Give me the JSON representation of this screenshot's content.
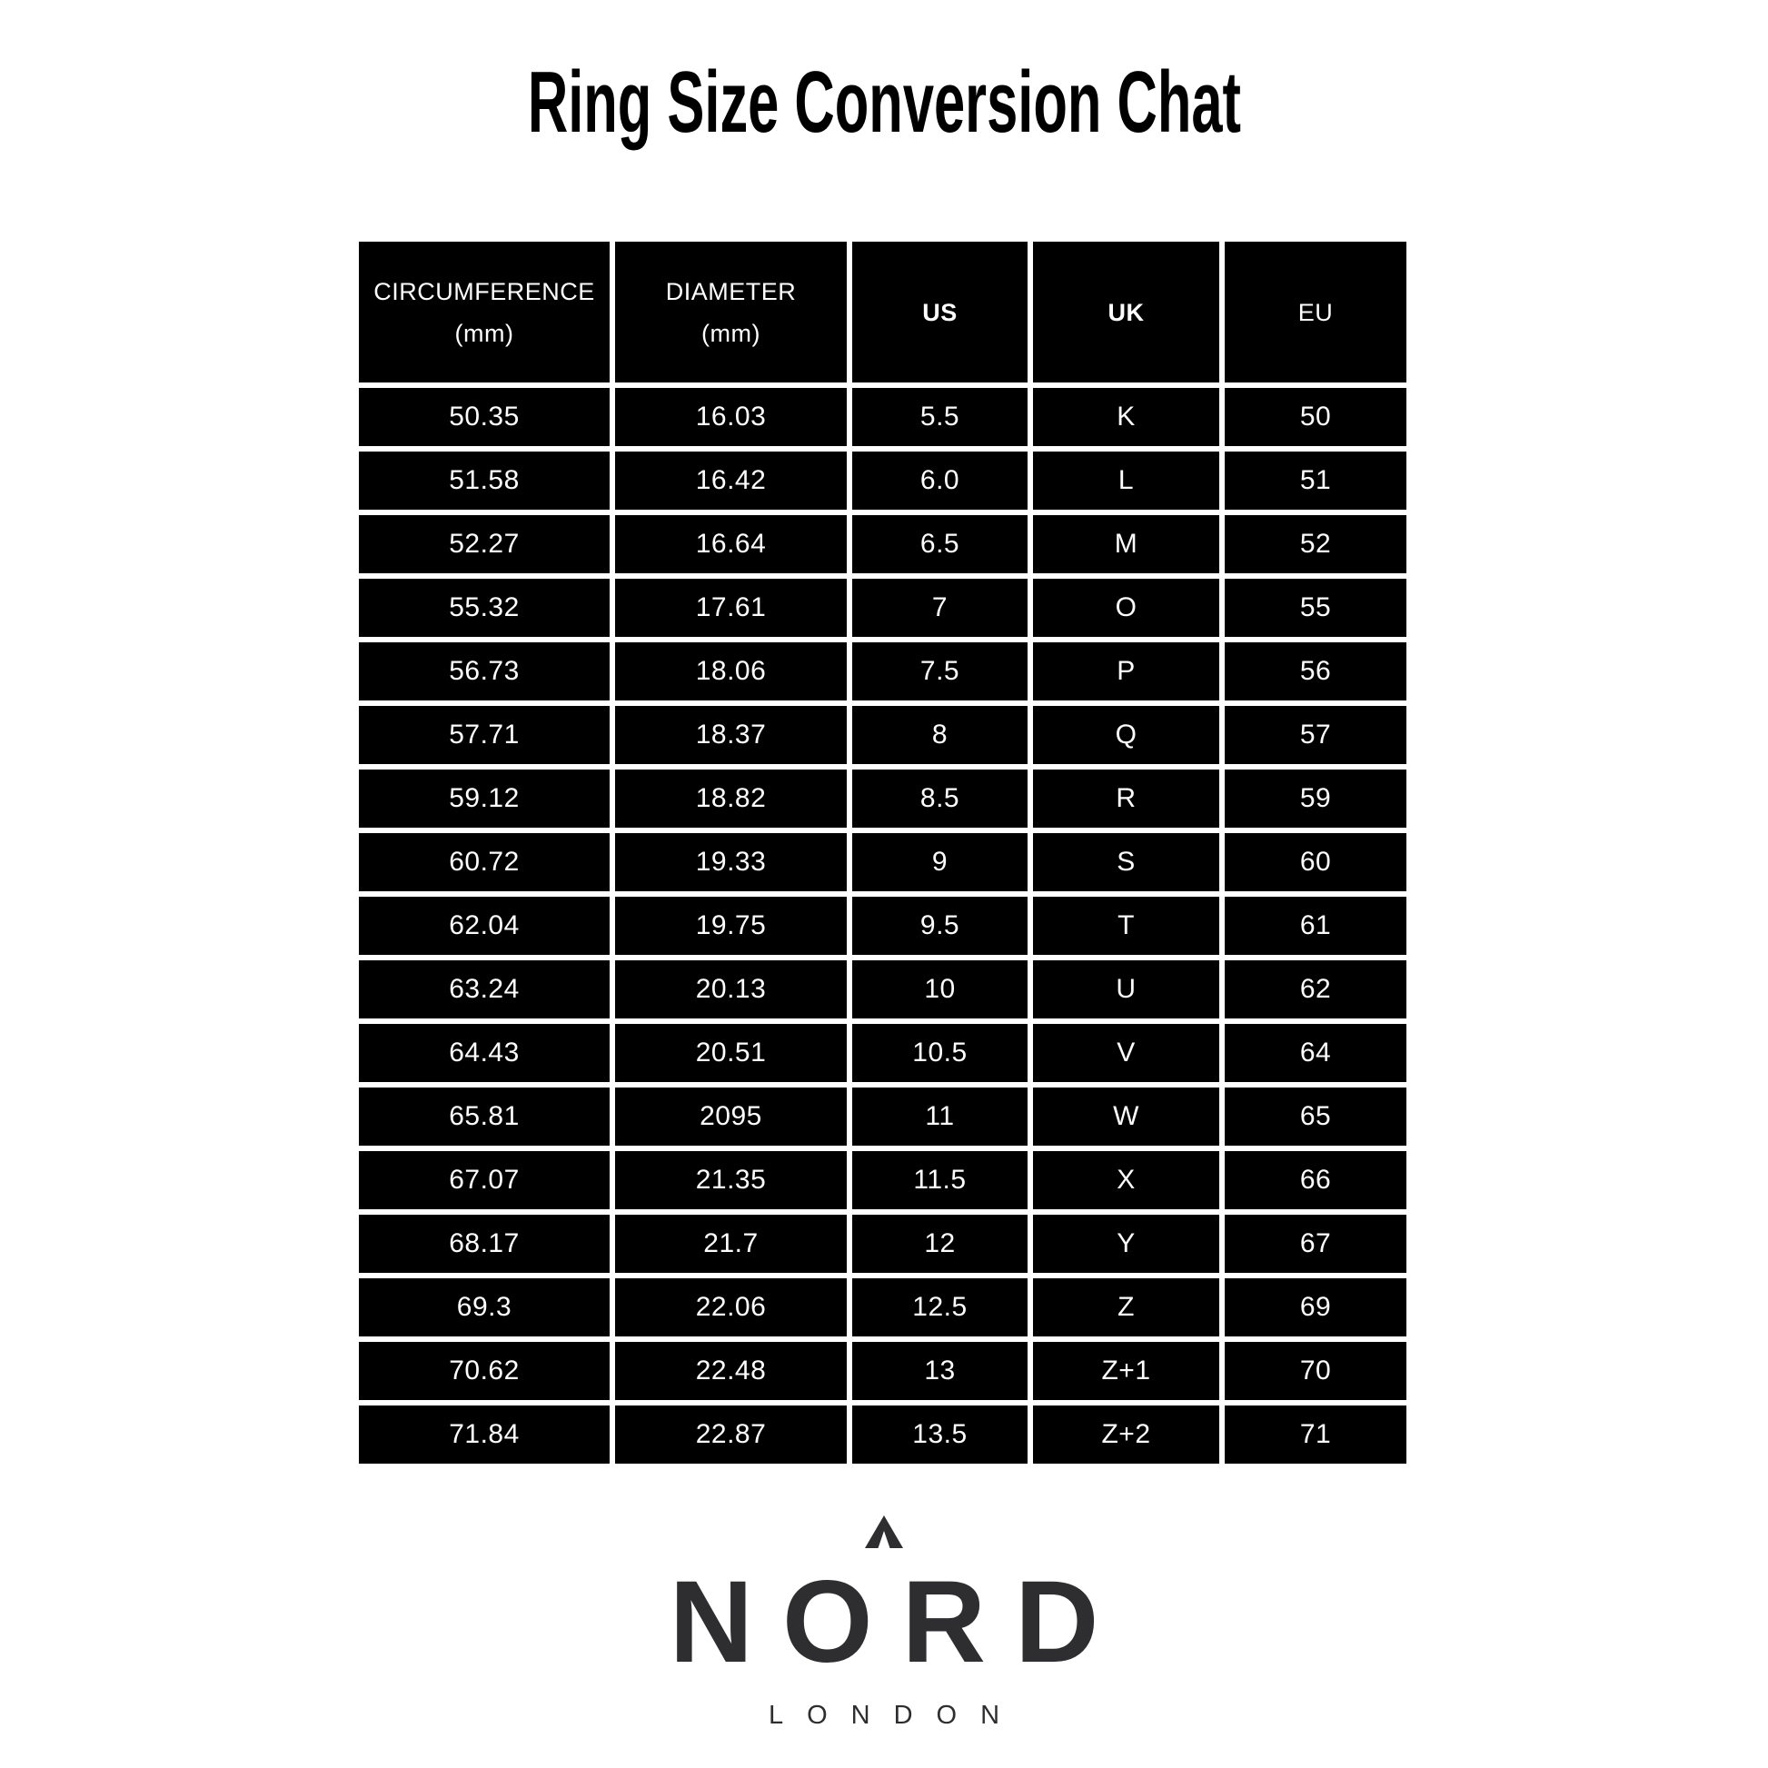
{
  "title": "Ring Size Conversion Chat",
  "table": {
    "headers": [
      {
        "line1": "CIRCUMFERENCE",
        "line2": "(mm)"
      },
      {
        "line1": "DIAMETER",
        "line2": "(mm)"
      },
      {
        "line1": "US",
        "line2": ""
      },
      {
        "line1": "UK",
        "line2": ""
      },
      {
        "line1": "EU",
        "line2": ""
      }
    ],
    "rows": [
      [
        "50.35",
        "16.03",
        "5.5",
        "K",
        "50"
      ],
      [
        "51.58",
        "16.42",
        "6.0",
        "L",
        "51"
      ],
      [
        "52.27",
        "16.64",
        "6.5",
        "M",
        "52"
      ],
      [
        "55.32",
        "17.61",
        "7",
        "O",
        "55"
      ],
      [
        "56.73",
        "18.06",
        "7.5",
        "P",
        "56"
      ],
      [
        "57.71",
        "18.37",
        "8",
        "Q",
        "57"
      ],
      [
        "59.12",
        "18.82",
        "8.5",
        "R",
        "59"
      ],
      [
        "60.72",
        "19.33",
        "9",
        "S",
        "60"
      ],
      [
        "62.04",
        "19.75",
        "9.5",
        "T",
        "61"
      ],
      [
        "63.24",
        "20.13",
        "10",
        "U",
        "62"
      ],
      [
        "64.43",
        "20.51",
        "10.5",
        "V",
        "64"
      ],
      [
        "65.81",
        "2095",
        "11",
        "W",
        "65"
      ],
      [
        "67.07",
        "21.35",
        "11.5",
        "X",
        "66"
      ],
      [
        "68.17",
        "21.7",
        "12",
        "Y",
        "67"
      ],
      [
        "69.3",
        "22.06",
        "12.5",
        "Z",
        "69"
      ],
      [
        "70.62",
        "22.48",
        "13",
        "Z+1",
        "70"
      ],
      [
        "71.84",
        "22.87",
        "13.5",
        "Z+2",
        "71"
      ]
    ]
  },
  "logo": {
    "mark": "chevron-up",
    "brand": "NORD",
    "city": "LONDON"
  },
  "colors": {
    "cell_bg": "#000000",
    "cell_text": "#fefefe",
    "title_text": "#000000",
    "logo_text": "#2e2e31",
    "page_bg": "#ffffff"
  },
  "chart_data": {
    "type": "table",
    "title": "Ring Size Conversion Chat",
    "columns": [
      "CIRCUMFERENCE (mm)",
      "DIAMETER (mm)",
      "US",
      "UK",
      "EU"
    ],
    "rows": [
      [
        "50.35",
        "16.03",
        "5.5",
        "K",
        "50"
      ],
      [
        "51.58",
        "16.42",
        "6.0",
        "L",
        "51"
      ],
      [
        "52.27",
        "16.64",
        "6.5",
        "M",
        "52"
      ],
      [
        "55.32",
        "17.61",
        "7",
        "O",
        "55"
      ],
      [
        "56.73",
        "18.06",
        "7.5",
        "P",
        "56"
      ],
      [
        "57.71",
        "18.37",
        "8",
        "Q",
        "57"
      ],
      [
        "59.12",
        "18.82",
        "8.5",
        "R",
        "59"
      ],
      [
        "60.72",
        "19.33",
        "9",
        "S",
        "60"
      ],
      [
        "62.04",
        "19.75",
        "9.5",
        "T",
        "61"
      ],
      [
        "63.24",
        "20.13",
        "10",
        "U",
        "62"
      ],
      [
        "64.43",
        "20.51",
        "10.5",
        "V",
        "64"
      ],
      [
        "65.81",
        "2095",
        "11",
        "W",
        "65"
      ],
      [
        "67.07",
        "21.35",
        "11.5",
        "X",
        "66"
      ],
      [
        "68.17",
        "21.7",
        "12",
        "Y",
        "67"
      ],
      [
        "69.3",
        "22.06",
        "12.5",
        "Z",
        "69"
      ],
      [
        "70.62",
        "22.48",
        "13",
        "Z+1",
        "70"
      ],
      [
        "71.84",
        "22.87",
        "13.5",
        "Z+2",
        "71"
      ]
    ]
  }
}
